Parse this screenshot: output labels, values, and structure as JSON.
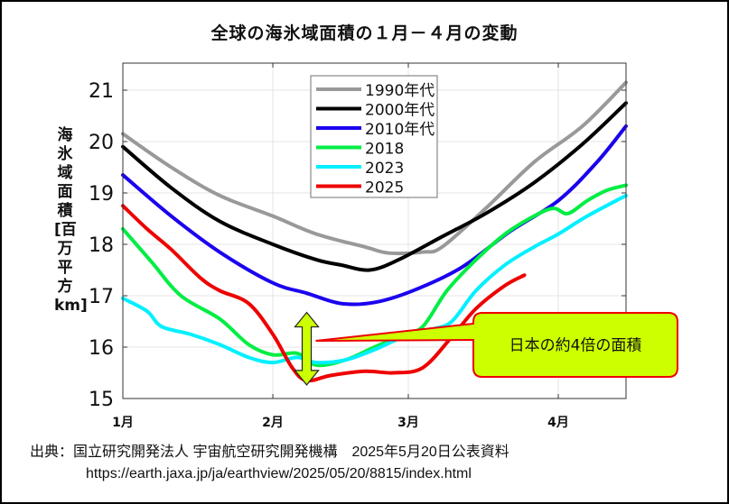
{
  "source": {
    "line1": "出典：国立研究開発法人 宇宙航空研究開発機構　2025年5月20日公表資料",
    "line2": "https://earth.jaxa.jp/ja/earthview/2025/05/20/8815/index.html"
  },
  "annotation": {
    "text": "日本の約4倍の面積",
    "fill": "#ccff00",
    "border": "#ee0000"
  },
  "chart_data": {
    "type": "line",
    "title": "全球の海氷域面積の１月－４月の変動",
    "xlabel": "",
    "ylabel": "海氷域面積[百万平方km]",
    "x_unit": "day of year (Jan 1 = 0)",
    "xlim": [
      0,
      104
    ],
    "ylim": [
      15,
      21.3
    ],
    "xticks": [
      {
        "value": 0,
        "label": "1月"
      },
      {
        "value": 31,
        "label": "2月"
      },
      {
        "value": 59,
        "label": "3月"
      },
      {
        "value": 90,
        "label": "4月"
      }
    ],
    "yticks": [
      15,
      16,
      17,
      18,
      19,
      20,
      21
    ],
    "grid": true,
    "legend_position": "top-center",
    "series": [
      {
        "name": "1990年代",
        "color": "#999999",
        "x": [
          0,
          10,
          20,
          31,
          40,
          50,
          55,
          62,
          66,
          75,
          85,
          95,
          104
        ],
        "values": [
          20.15,
          19.5,
          18.95,
          18.55,
          18.2,
          17.95,
          17.83,
          17.85,
          17.95,
          18.7,
          19.6,
          20.3,
          21.15
        ]
      },
      {
        "name": "2000年代",
        "color": "#000000",
        "x": [
          0,
          10,
          20,
          31,
          40,
          45,
          51,
          57,
          66,
          75,
          85,
          95,
          104
        ],
        "values": [
          19.9,
          19.1,
          18.45,
          18.0,
          17.7,
          17.6,
          17.5,
          17.7,
          18.15,
          18.6,
          19.2,
          19.95,
          20.75
        ]
      },
      {
        "name": "2010年代",
        "color": "#1a00ee",
        "x": [
          0,
          10,
          20,
          31,
          38,
          45,
          52,
          60,
          70,
          80,
          90,
          98,
          104
        ],
        "values": [
          19.35,
          18.55,
          17.85,
          17.25,
          17.05,
          16.85,
          16.87,
          17.1,
          17.55,
          18.25,
          18.85,
          19.6,
          20.3
        ]
      },
      {
        "name": "2018",
        "color": "#00ee44",
        "x": [
          0,
          6,
          12,
          20,
          26,
          31,
          36,
          40,
          46,
          52,
          58,
          62,
          67,
          73,
          79,
          85,
          89,
          92,
          96,
          100,
          104
        ],
        "values": [
          18.3,
          17.65,
          17.0,
          16.55,
          16.05,
          15.85,
          15.88,
          15.65,
          15.75,
          16.0,
          16.25,
          16.4,
          17.1,
          17.7,
          18.2,
          18.55,
          18.7,
          18.6,
          18.85,
          19.05,
          19.15
        ]
      },
      {
        "name": "2023",
        "color": "#00f0ff",
        "x": [
          0,
          5,
          8,
          14,
          20,
          26,
          31,
          36,
          40,
          46,
          52,
          58,
          64,
          68,
          73,
          79,
          85,
          90,
          96,
          104
        ],
        "values": [
          16.95,
          16.7,
          16.4,
          16.25,
          16.05,
          15.8,
          15.7,
          15.8,
          15.7,
          15.75,
          15.95,
          16.2,
          16.35,
          16.5,
          17.1,
          17.6,
          17.95,
          18.2,
          18.55,
          18.95
        ]
      },
      {
        "name": "2025",
        "color": "#ee0000",
        "x": [
          0,
          5,
          10,
          16,
          20,
          26,
          31,
          35,
          38,
          43,
          50,
          56,
          62,
          68,
          73,
          79,
          83
        ],
        "values": [
          18.75,
          18.3,
          17.9,
          17.35,
          17.1,
          16.85,
          16.25,
          15.6,
          15.35,
          15.45,
          15.53,
          15.5,
          15.6,
          16.2,
          16.75,
          17.2,
          17.4
        ]
      }
    ],
    "arrow": {
      "x": 38,
      "from": 15.3,
      "to": 16.85,
      "label_ref": "annotation.text"
    }
  }
}
